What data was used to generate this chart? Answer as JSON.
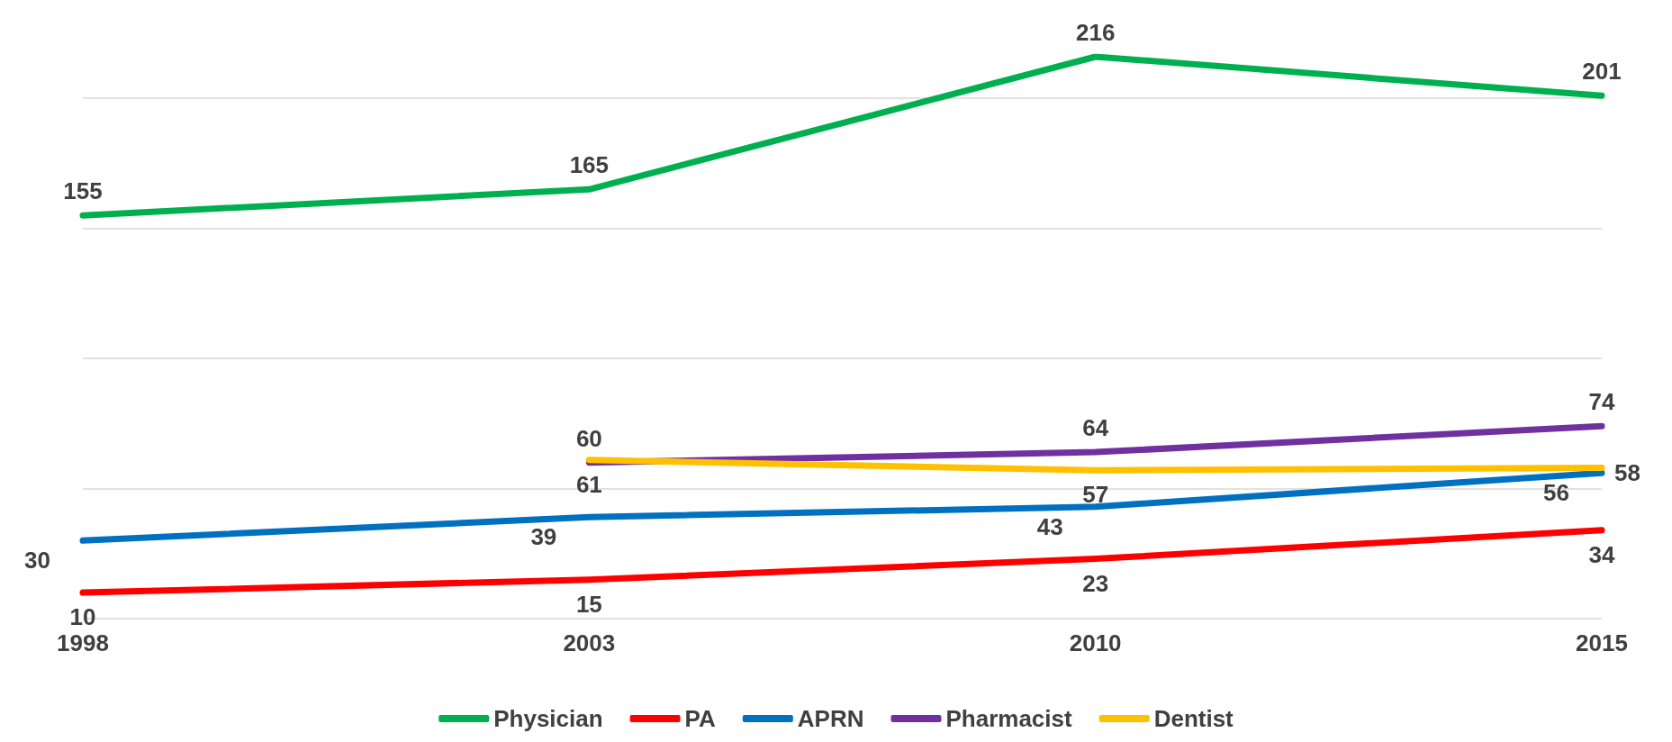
{
  "chart_data": {
    "type": "line",
    "categories": [
      "1998",
      "2003",
      "2010",
      "2015"
    ],
    "series": [
      {
        "name": "Physician",
        "color": "#00b050",
        "values": [
          155,
          165,
          216,
          201
        ]
      },
      {
        "name": "PA",
        "color": "#ff0000",
        "values": [
          10,
          15,
          23,
          34
        ]
      },
      {
        "name": "APRN",
        "color": "#0070c0",
        "values": [
          30,
          39,
          43,
          56
        ]
      },
      {
        "name": "Pharmacist",
        "color": "#7030a0",
        "values": [
          null,
          60,
          64,
          74
        ]
      },
      {
        "name": "Dentist",
        "color": "#ffc000",
        "values": [
          null,
          61,
          57,
          58
        ]
      }
    ],
    "yticks": [
      {
        "value": 0,
        "label": null
      },
      {
        "value": 50,
        "label": null
      },
      {
        "value": 100,
        "label": null
      },
      {
        "value": 150,
        "label": null
      },
      {
        "value": 200,
        "label": null
      }
    ],
    "tick_labels": "x",
    "grid": "y",
    "legend": "bottom",
    "data_labels": true,
    "marker": "none",
    "line_style": "solid"
  }
}
